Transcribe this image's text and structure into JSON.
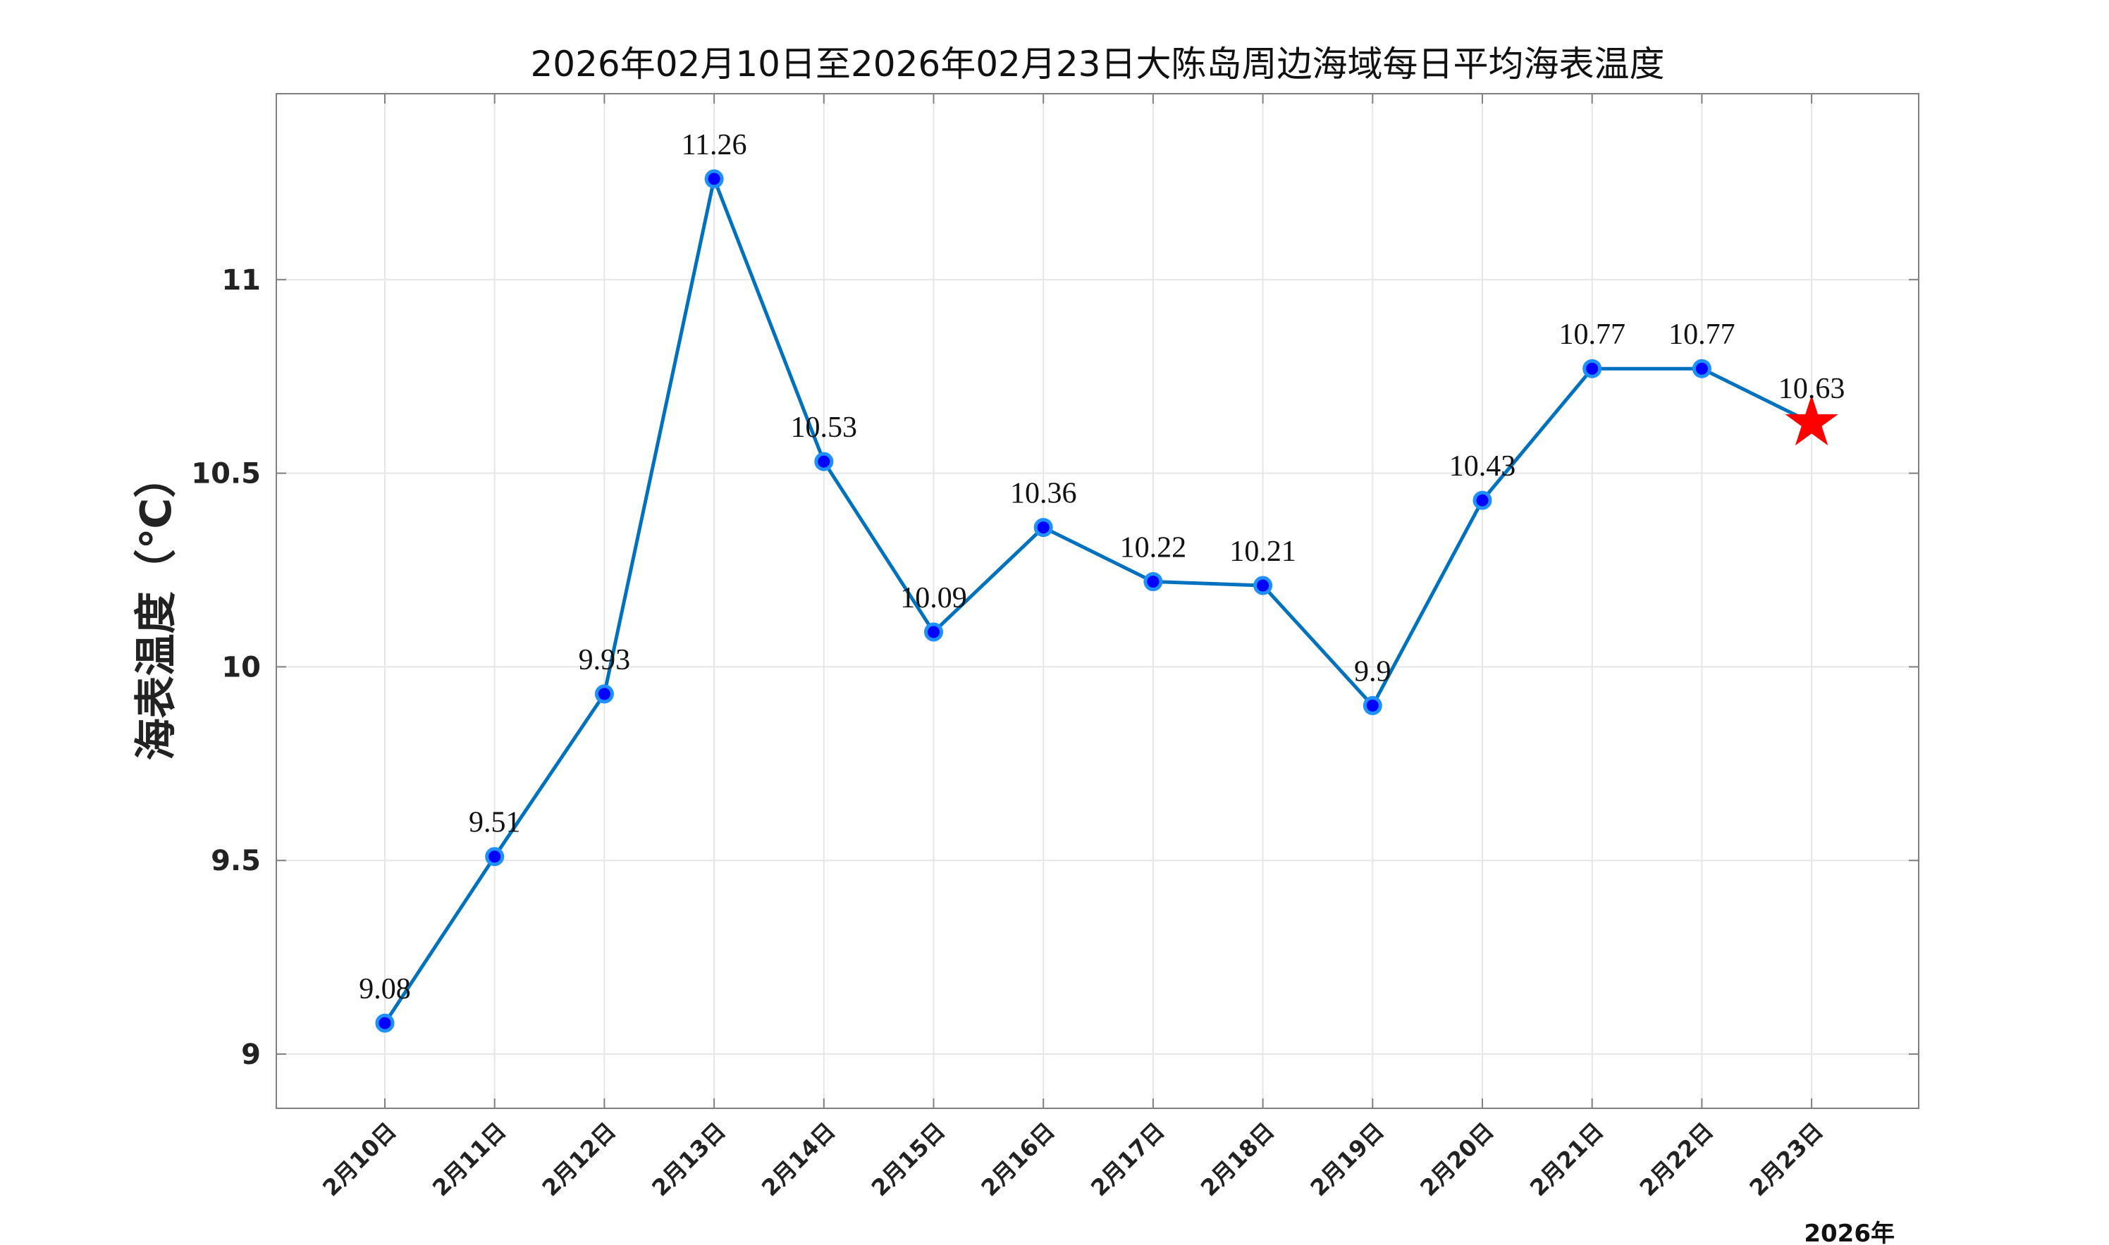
{
  "chart_data": {
    "type": "line",
    "title": "2026年02月10日至2026年02月23日大陈岛周边海域每日平均海表温度",
    "ylabel": "海表温度（℃）",
    "xlabel": "",
    "year_label": "2026年",
    "categories": [
      "2月10日",
      "2月11日",
      "2月12日",
      "2月13日",
      "2月14日",
      "2月15日",
      "2月16日",
      "2月17日",
      "2月18日",
      "2月19日",
      "2月20日",
      "2月21日",
      "2月22日",
      "2月23日"
    ],
    "series": [
      {
        "values": [
          9.08,
          9.51,
          9.93,
          11.26,
          10.53,
          10.09,
          10.36,
          10.22,
          10.21,
          9.9,
          10.43,
          10.77,
          10.77,
          10.63
        ]
      }
    ],
    "data_labels": [
      "9.08",
      "9.51",
      "9.93",
      "11.26",
      "10.53",
      "10.09",
      "10.36",
      "10.22",
      "10.21",
      "9.9",
      "10.43",
      "10.77",
      "10.77",
      "10.63"
    ],
    "ylim": [
      8.86,
      11.48
    ],
    "yticks": [
      9,
      9.5,
      10,
      10.5,
      11
    ],
    "ytick_labels": [
      "9",
      "9.5",
      "10",
      "10.5",
      "11"
    ],
    "grid": true,
    "highlight_last_point": "star",
    "colors": {
      "line": "#0072BD",
      "marker_fill": "#0000FF",
      "marker_edge": "#1E90FF",
      "star": "#FF0000",
      "grid": "#E6E6E6",
      "axes": "#808080"
    }
  }
}
